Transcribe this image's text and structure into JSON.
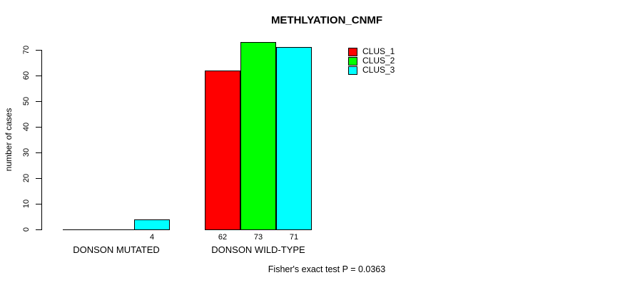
{
  "chart_data": {
    "type": "bar",
    "title": "METHLYATION_CNMF",
    "ylabel": "number of cases",
    "xlabel": "",
    "ylim": [
      0,
      70
    ],
    "yticks": [
      0,
      10,
      20,
      30,
      40,
      50,
      60,
      70
    ],
    "categories": [
      "DONSON MUTATED",
      "DONSON WILD-TYPE"
    ],
    "series": [
      {
        "name": "CLUS_1",
        "color": "#ff0000",
        "values": [
          0,
          62
        ]
      },
      {
        "name": "CLUS_2",
        "color": "#00ff00",
        "values": [
          0,
          73
        ]
      },
      {
        "name": "CLUS_3",
        "color": "#00ffff",
        "values": [
          4,
          71
        ]
      }
    ],
    "bar_value_labels_shown_when_nonzero": true,
    "legend_position": "top-right",
    "grid": false,
    "footnote": "Fisher's exact test P = 0.0363"
  }
}
